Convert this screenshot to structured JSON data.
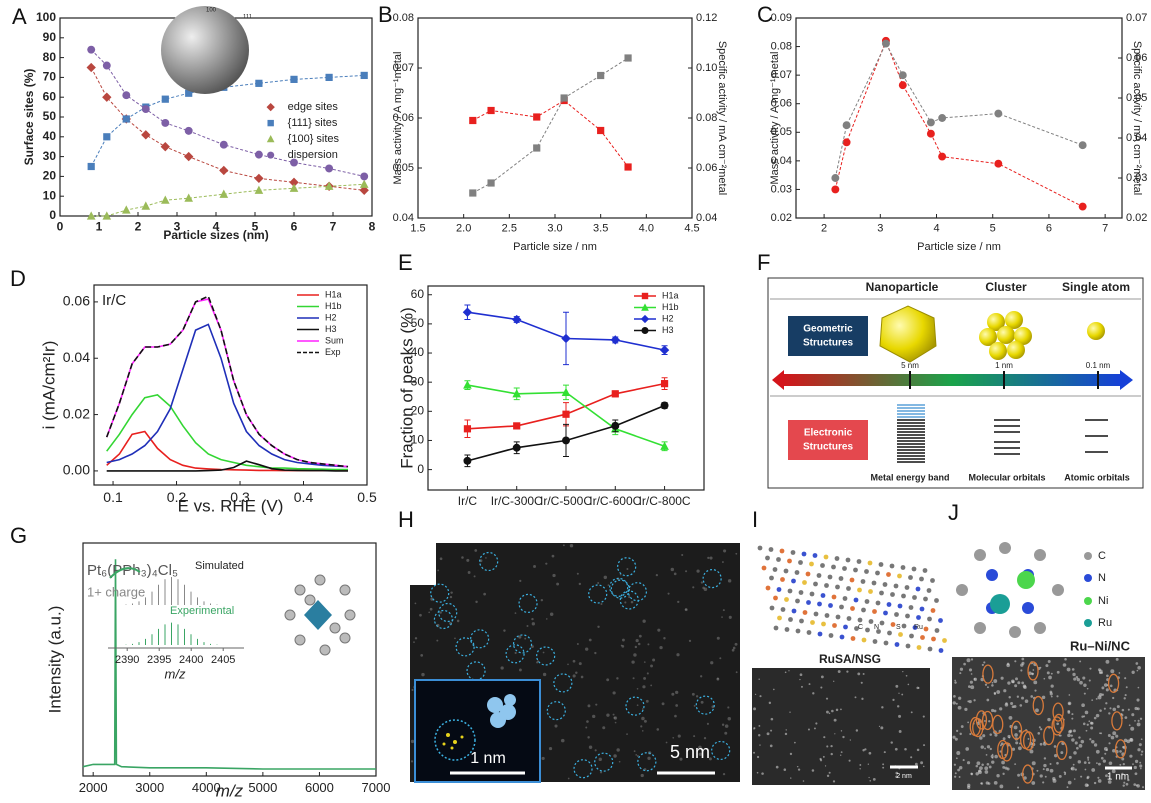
{
  "panel_labels": [
    "A",
    "B",
    "C",
    "D",
    "E",
    "F",
    "G",
    "H",
    "I",
    "J"
  ],
  "chart_data": [
    {
      "type": "line",
      "xlabel": "Particle sizes (nm)",
      "ylabel": "Surface sites (%)",
      "x": [
        0.8,
        1.2,
        1.7,
        2.2,
        2.7,
        3.3,
        4.2,
        5.1,
        6,
        6.9,
        7.8
      ],
      "xlim": [
        0,
        8
      ],
      "xticks": [
        0,
        1,
        2,
        3,
        4,
        5,
        6,
        7,
        8
      ],
      "ylim": [
        0,
        100
      ],
      "yticks": [
        0,
        10,
        20,
        30,
        40,
        50,
        60,
        70,
        80,
        90,
        100
      ],
      "legend": "center-right",
      "inset_labels": [
        "100",
        "111"
      ],
      "series": [
        {
          "name": "edge sites",
          "color": "#b9473f",
          "marker": "diamond",
          "line": true,
          "dash": true,
          "values": [
            75,
            60,
            49,
            41,
            35,
            30,
            23,
            19,
            17,
            15,
            13
          ]
        },
        {
          "name": "{111} sites",
          "color": "#4a7ebb",
          "marker": "square",
          "line": true,
          "dash": true,
          "values": [
            25,
            40,
            49,
            55,
            59,
            62,
            65,
            67,
            69,
            70,
            71
          ]
        },
        {
          "name": "{100} sites",
          "color": "#9bbb59",
          "marker": "triangle",
          "line": true,
          "dash": true,
          "values": [
            0,
            0,
            3,
            5,
            8,
            9,
            11,
            13,
            14,
            15,
            16
          ]
        },
        {
          "name": "dispersion",
          "color": "#7d5fa6",
          "marker": "circle",
          "line": true,
          "dash": true,
          "values": [
            84,
            76,
            61,
            54,
            47,
            43,
            36,
            31,
            27,
            24,
            20
          ]
        }
      ]
    },
    {
      "type": "scatter",
      "xlabel": "Particle size / nm",
      "ylabel": "Mass activity / A mg⁻¹metal",
      "y2label": "Specific activity / mA cm⁻²metal",
      "x": [
        2.1,
        2.3,
        2.8,
        3.1,
        3.5,
        3.8
      ],
      "xlim": [
        1.5,
        4.5
      ],
      "xticks": [
        1.5,
        {
          "value": 2,
          "label": "2.0"
        },
        2.5,
        {
          "value": 3,
          "label": "3.0"
        },
        3.5,
        {
          "value": 4,
          "label": "4.0"
        },
        4.5
      ],
      "ylim": [
        0.04,
        0.08
      ],
      "yticks": [
        0.04,
        0.05,
        0.06,
        0.07,
        0.08
      ],
      "y2lim": [
        0.04,
        0.12
      ],
      "y2ticks": [
        0.04,
        0.06,
        0.08,
        {
          "value": 0.1,
          "label": "0.10"
        },
        0.12
      ],
      "series": [
        {
          "color": "#e8201e",
          "marker": "square",
          "line": true,
          "dash": true,
          "values": [
            0.0595,
            0.0615,
            0.0602,
            0.0635,
            0.0575,
            0.0502
          ]
        },
        {
          "color": "#808080",
          "marker": "square",
          "line": true,
          "dash": true,
          "axis": "y2",
          "values": [
            0.05,
            0.054,
            0.068,
            0.088,
            0.097,
            0.104
          ]
        }
      ]
    },
    {
      "type": "scatter",
      "xlabel": "Particle size / nm",
      "ylabel": "Mass activity / A mg⁻¹metal",
      "y2label": "Specific activity / mA cm⁻²metal",
      "x": [
        2.2,
        2.4,
        3.1,
        3.4,
        3.9,
        4.1,
        5.1,
        6.6
      ],
      "xlim": [
        1.5,
        7.3
      ],
      "xticks": [
        2,
        3,
        4,
        5,
        6,
        7
      ],
      "ylim": [
        0.02,
        0.09
      ],
      "yticks": [
        0.02,
        0.03,
        0.04,
        0.05,
        0.06,
        0.07,
        0.08,
        0.09
      ],
      "y2lim": [
        0.02,
        0.07
      ],
      "y2ticks": [
        0.02,
        0.03,
        0.04,
        0.05,
        0.06,
        0.07
      ],
      "series": [
        {
          "color": "#e8201e",
          "marker": "circle",
          "line": true,
          "dash": true,
          "values": [
            0.03,
            0.0465,
            0.082,
            0.0665,
            0.0495,
            0.0415,
            0.039,
            0.024
          ]
        },
        {
          "color": "#808080",
          "marker": "circle",
          "line": true,
          "dash": true,
          "axis": "y2",
          "values": [
            0.03,
            0.0432,
            0.0636,
            0.0557,
            0.0439,
            0.045,
            0.0461,
            0.0382
          ]
        }
      ]
    },
    {
      "type": "line",
      "inner_label": "Ir/C",
      "xlabel": "E vs. RHE (V)",
      "ylabel": "i (mA/cm²Ir)",
      "x": [
        0.09,
        0.11,
        0.13,
        0.15,
        0.17,
        0.19,
        0.21,
        0.23,
        0.25,
        0.27,
        0.29,
        0.31,
        0.33,
        0.35,
        0.37,
        0.39,
        0.41,
        0.43,
        0.45,
        0.47
      ],
      "xlim": [
        0.07,
        0.5
      ],
      "xticks": [
        0.1,
        0.2,
        0.3,
        0.4,
        0.5
      ],
      "ylim": [
        -0.005,
        0.066
      ],
      "yticks": [
        {
          "value": 0,
          "label": "0.00"
        },
        0.02,
        0.04,
        0.06
      ],
      "legend": "top-right",
      "series": [
        {
          "name": "H1a",
          "color": "#e8201e",
          "line": true,
          "values": [
            0.002,
            0.006,
            0.013,
            0.014,
            0.008,
            0.004,
            0.002,
            0.001,
            0.0007,
            0.0005,
            0.0004,
            0.0003,
            0.0002,
            0.0002,
            0.0001,
            0.0001,
            0.0001,
            0.0001,
            0.0001,
            0.0001
          ]
        },
        {
          "name": "H1b",
          "color": "#33d633",
          "line": true,
          "values": [
            0.007,
            0.013,
            0.02,
            0.026,
            0.027,
            0.023,
            0.016,
            0.01,
            0.006,
            0.004,
            0.003,
            0.002,
            0.0015,
            0.001,
            0.001,
            0.0008,
            0.0007,
            0.0006,
            0.0005,
            0.0005
          ]
        },
        {
          "name": "H2",
          "color": "#1f2fb8",
          "line": true,
          "values": [
            0.003,
            0.004,
            0.006,
            0.009,
            0.014,
            0.022,
            0.036,
            0.05,
            0.052,
            0.04,
            0.024,
            0.014,
            0.009,
            0.006,
            0.004,
            0.003,
            0.0025,
            0.002,
            0.0017,
            0.0015
          ]
        },
        {
          "name": "H3",
          "color": "#111111",
          "line": true,
          "values": [
            0,
            0,
            0,
            0,
            0,
            0,
            0,
            0,
            0.0001,
            0.0003,
            0.0012,
            0.0035,
            0.0022,
            0.0008,
            0.0003,
            0.0002,
            0.0001,
            0.0001,
            0,
            0
          ]
        },
        {
          "name": "Sum",
          "color": "#ff22ff",
          "line": true,
          "values": [
            0.012,
            0.024,
            0.038,
            0.044,
            0.044,
            0.045,
            0.05,
            0.06,
            0.061,
            0.05,
            0.032,
            0.02,
            0.013,
            0.009,
            0.006,
            0.004,
            0.003,
            0.0025,
            0.002,
            0.0015
          ]
        },
        {
          "name": "Exp",
          "color": "#111111",
          "line": true,
          "dash": true,
          "values": [
            0.012,
            0.024,
            0.038,
            0.044,
            0.044,
            0.045,
            0.05,
            0.06,
            0.062,
            0.05,
            0.032,
            0.02,
            0.013,
            0.009,
            0.006,
            0.004,
            0.003,
            0.0025,
            0.002,
            0.0015
          ]
        }
      ]
    },
    {
      "type": "line",
      "ylabel": "Fraction of peaks (%)",
      "categories": [
        "Ir/C",
        "Ir/C-300C",
        "Ir/C-500C",
        "Ir/C-600C",
        "Ir/C-800C"
      ],
      "ylim": [
        -7,
        63
      ],
      "yticks": [
        0,
        10,
        20,
        30,
        40,
        50,
        60
      ],
      "legend": "top-right",
      "series": [
        {
          "name": "H1a",
          "color": "#e8201e",
          "marker": "square",
          "line": true,
          "values": [
            14,
            15,
            19,
            26,
            29.5
          ],
          "errors": [
            3,
            1,
            4,
            1,
            2
          ]
        },
        {
          "name": "H1b",
          "color": "#33e033",
          "marker": "triangle",
          "line": true,
          "values": [
            29,
            26,
            26.5,
            14,
            8
          ],
          "errors": [
            1.5,
            2,
            2.5,
            2,
            1.5
          ]
        },
        {
          "name": "H2",
          "color": "#1f2fd0",
          "marker": "diamond",
          "line": true,
          "values": [
            54,
            51.5,
            45,
            44.5,
            41
          ],
          "errors": [
            2.5,
            1,
            9,
            1,
            1.5
          ]
        },
        {
          "name": "H3",
          "color": "#111111",
          "marker": "circle",
          "line": true,
          "values": [
            3,
            7.5,
            10,
            15,
            22
          ],
          "errors": [
            2,
            2,
            5.5,
            2,
            1
          ]
        }
      ]
    },
    {
      "type": "line",
      "xlabel": "m/z",
      "ylabel": "Intensity (a.u.)",
      "formula": "Pt₆(PPh₃)₄Cl₅",
      "charge": "1+ charge",
      "x": [
        1820,
        2000,
        2380,
        2395,
        2410,
        2500,
        3000,
        4000,
        5000,
        6000,
        7000
      ],
      "xlim": [
        1820,
        7000
      ],
      "xticks": [
        2000,
        3000,
        4000,
        5000,
        6000,
        7000
      ],
      "ylim": [
        0,
        1
      ],
      "yticks": [],
      "series": [
        {
          "color": "#3aa564",
          "line": true,
          "values": [
            0.04,
            0.05,
            0.05,
            0.93,
            0.05,
            0.04,
            0.035,
            0.035,
            0.03,
            0.03,
            0.03
          ]
        }
      ],
      "inset": {
        "simulated": "Simulated",
        "experimental": "Experimental",
        "xlabel": "m/z",
        "xlim": [
          2387,
          2407
        ],
        "xticks": [
          2390,
          2395,
          2400,
          2405
        ]
      }
    }
  ],
  "schematic_F": {
    "headers": [
      "Nanoparticle",
      "Cluster",
      "Single atom"
    ],
    "geometric": [
      "Geometric",
      "Structures"
    ],
    "electronic": [
      "Electronic",
      "Structures"
    ],
    "sizes": [
      "5 nm",
      "1 nm",
      "0.1 nm"
    ],
    "captions": [
      "Metal energy band",
      "Molecular orbitals",
      "Atomic orbitals"
    ]
  },
  "image_H": {
    "inset_scale": "1 nm",
    "scale": "5 nm"
  },
  "image_I": {
    "atoms": [
      "C",
      "N",
      "S",
      "Ru"
    ],
    "caption": "RuSA/NSG",
    "scale": "2 nm"
  },
  "image_J": {
    "atoms": [
      "C",
      "N",
      "Ni",
      "Ru"
    ],
    "caption": "Ru–Ni/NC",
    "scale": "1 nm"
  }
}
